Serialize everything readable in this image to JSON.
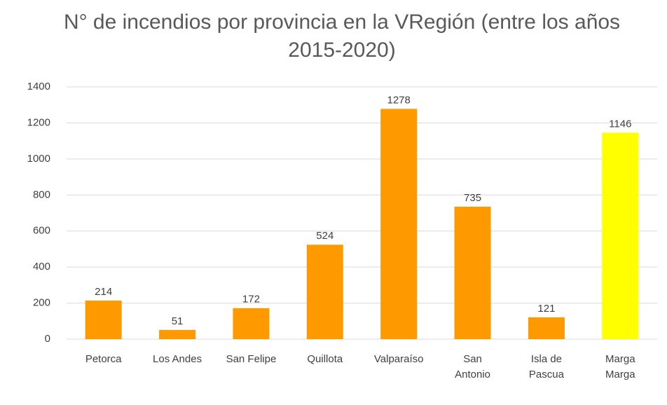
{
  "chart_data": {
    "type": "bar",
    "title": "N° de incendios por provincia en la VRegión (entre los años 2015-2020)",
    "categories": [
      "Petorca",
      "Los Andes",
      "San Felipe",
      "Quillota",
      "Valparaíso",
      "San Antonio",
      "Isla de Pascua",
      "Marga Marga"
    ],
    "values": [
      214,
      51,
      172,
      524,
      1278,
      735,
      121,
      1146
    ],
    "colors": [
      "#ff9900",
      "#ff9900",
      "#ff9900",
      "#ff9900",
      "#ff9900",
      "#ff9900",
      "#ff9900",
      "#ffff00"
    ],
    "ylim": [
      0,
      1400
    ],
    "yticks": [
      0,
      200,
      400,
      600,
      800,
      1000,
      1200,
      1400
    ],
    "grid": true
  }
}
